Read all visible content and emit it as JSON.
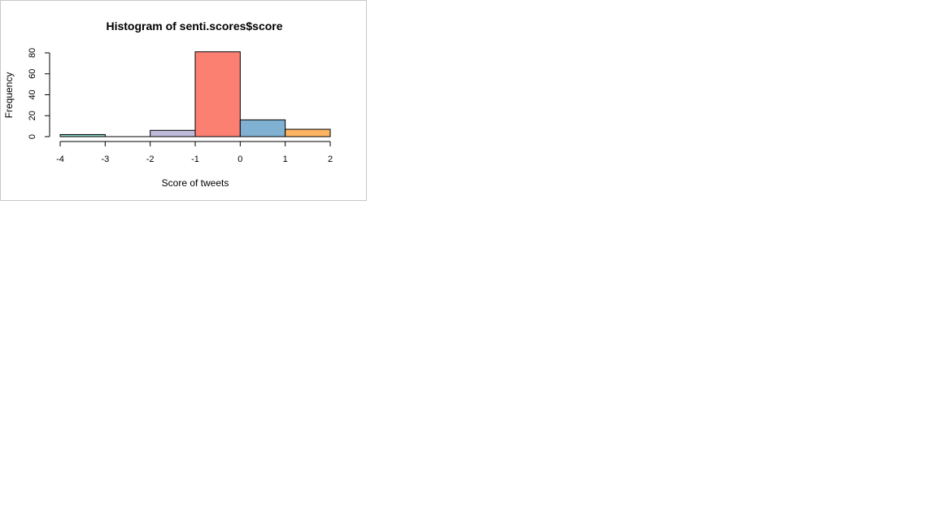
{
  "chart_data": {
    "type": "bar",
    "subtype": "histogram",
    "title": "Histogram of senti.scores$score",
    "xlabel": "Score of tweets",
    "ylabel": "Frequency",
    "bins": [
      {
        "from": -4,
        "to": -3,
        "count": 2,
        "color": "#8dd3c7"
      },
      {
        "from": -3,
        "to": -2,
        "count": 0,
        "color": "#ffffb3"
      },
      {
        "from": -2,
        "to": -1,
        "count": 6,
        "color": "#bebada"
      },
      {
        "from": -1,
        "to": 0,
        "count": 81,
        "color": "#fb8072"
      },
      {
        "from": 0,
        "to": 1,
        "count": 16,
        "color": "#80b1d3"
      },
      {
        "from": 1,
        "to": 2,
        "count": 7,
        "color": "#fdb462"
      }
    ],
    "x_ticks": [
      "-4",
      "-3",
      "-2",
      "-1",
      "0",
      "1",
      "2"
    ],
    "y_ticks": [
      "0",
      "20",
      "40",
      "60",
      "80"
    ],
    "xlim": [
      -4,
      2
    ],
    "ylim": [
      0,
      80
    ],
    "grid": false,
    "legend": "none"
  }
}
